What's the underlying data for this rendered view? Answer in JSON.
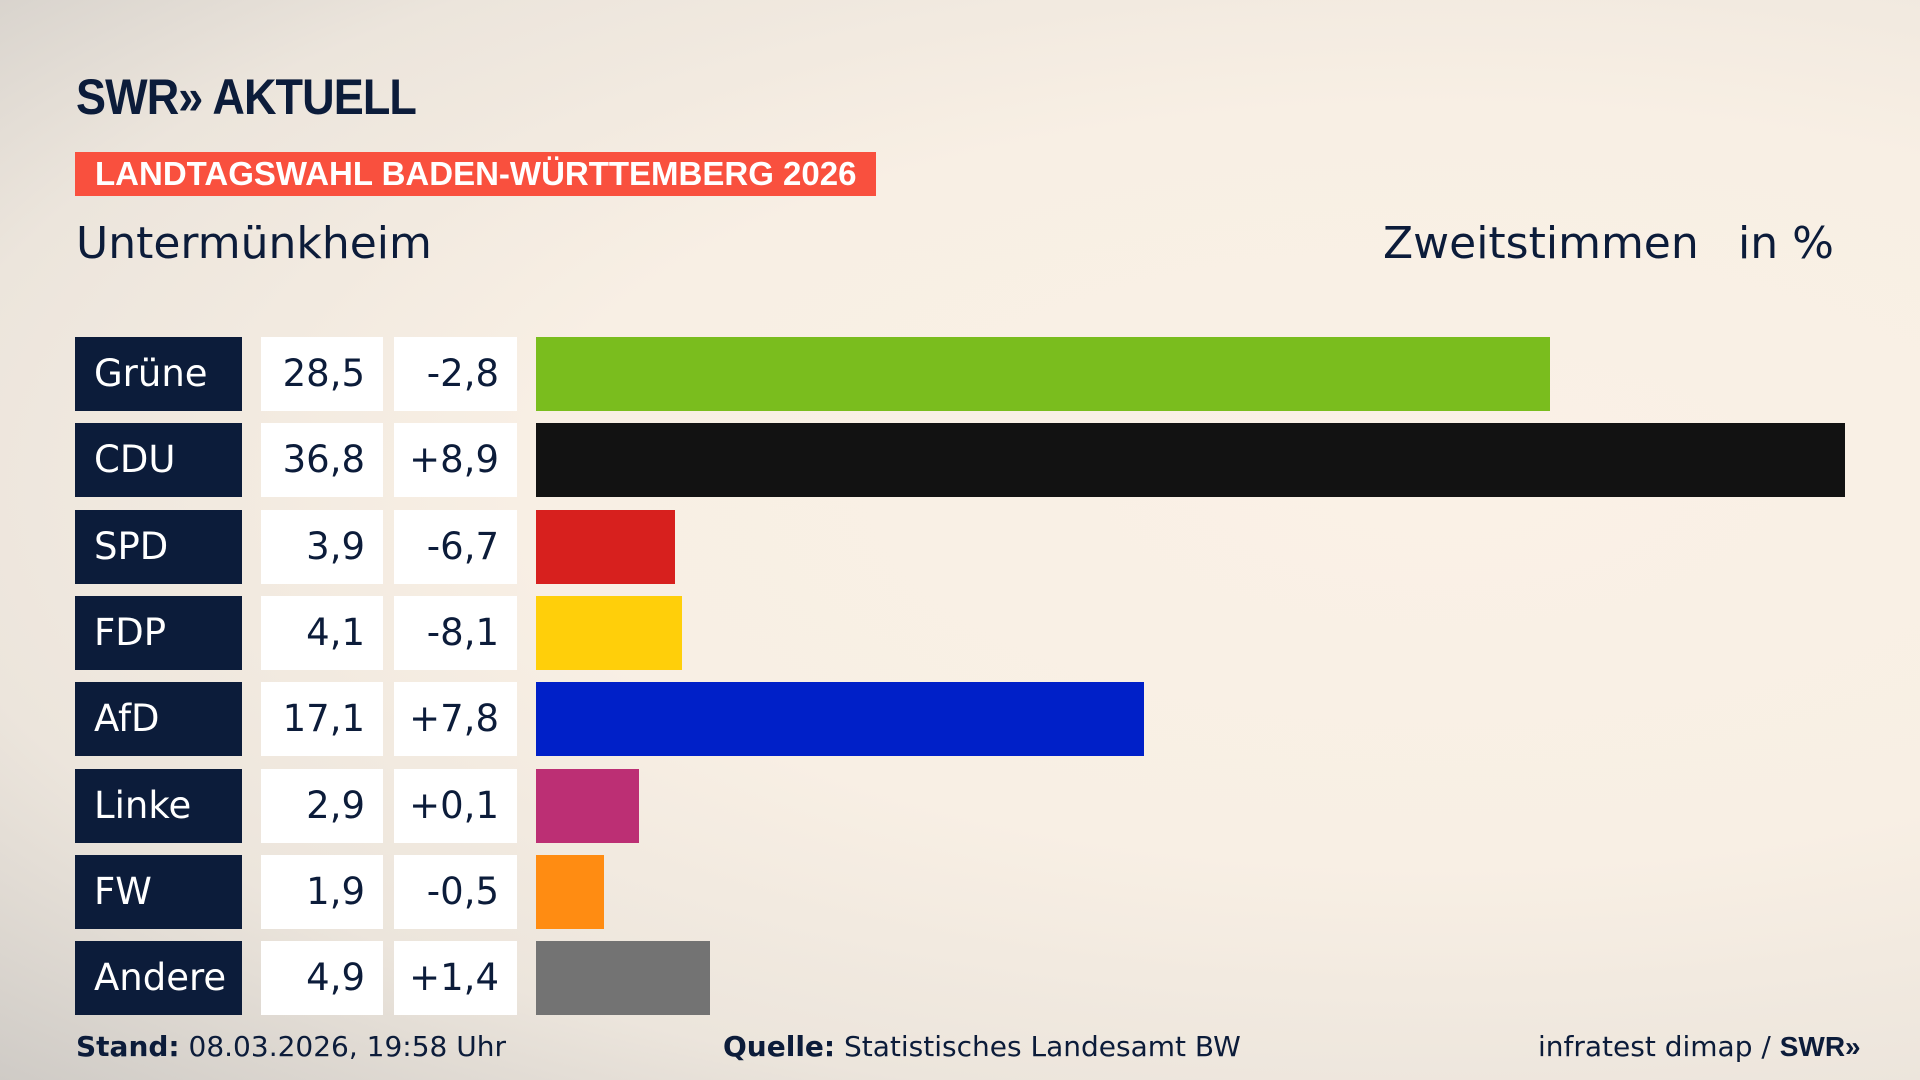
{
  "header": {
    "logo": "SWR» AKTUELL",
    "banner": "LANDTAGSWAHL BADEN-WÜRTTEMBERG 2026",
    "title": "Untermünkheim",
    "vote_type": "Zweitstimmen",
    "unit": "in %"
  },
  "chart_data": {
    "type": "bar",
    "orientation": "horizontal",
    "categories": [
      "Grüne",
      "CDU",
      "SPD",
      "FDP",
      "AfD",
      "Linke",
      "FW",
      "Andere"
    ],
    "values": [
      28.5,
      36.8,
      3.9,
      4.1,
      17.1,
      2.9,
      1.9,
      4.9
    ],
    "value_labels": [
      "28,5",
      "36,8",
      "3,9",
      "4,1",
      "17,1",
      "2,9",
      "1,9",
      "4,9"
    ],
    "change_labels": [
      "-2,8",
      "+8,9",
      "-6,7",
      "-8,1",
      "+7,8",
      "+0,1",
      "-0,5",
      "+1,4"
    ],
    "changes": [
      -2.8,
      8.9,
      -6.7,
      -8.1,
      7.8,
      0.1,
      -0.5,
      1.4
    ],
    "colors": [
      "#7abd1e",
      "#121212",
      "#d7201e",
      "#ffcf0a",
      "#0020c8",
      "#bc2f74",
      "#ff8c12",
      "#737373"
    ],
    "xlim": [
      0,
      36.8
    ],
    "grid": false,
    "legend": "none"
  },
  "footer": {
    "stand_label": "Stand:",
    "stand_value": "08.03.2026, 19:58 Uhr",
    "source_label": "Quelle:",
    "source_value": "Statistisches Landesamt BW",
    "credit": "infratest dimap / ",
    "credit_logo": "SWR»"
  }
}
